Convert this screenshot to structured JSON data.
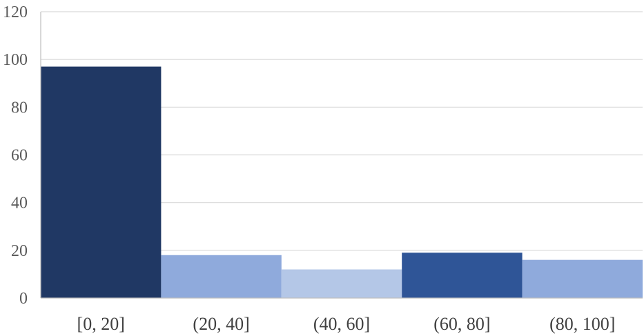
{
  "chart_data": {
    "type": "bar",
    "title": "",
    "xlabel": "",
    "ylabel": "",
    "categories": [
      "[0, 20]",
      "(20, 40]",
      "(40, 60]",
      "(60, 80]",
      "(80, 100]"
    ],
    "values": [
      97,
      18,
      12,
      19,
      16
    ],
    "bar_colors": [
      "#203864",
      "#8faadc",
      "#b4c7e7",
      "#2f5597",
      "#8faadc"
    ],
    "ylim": [
      0,
      120
    ],
    "yticks": [
      0,
      20,
      40,
      60,
      80,
      100,
      120
    ],
    "grid": true,
    "legend": "none",
    "bar_gap": "none"
  }
}
